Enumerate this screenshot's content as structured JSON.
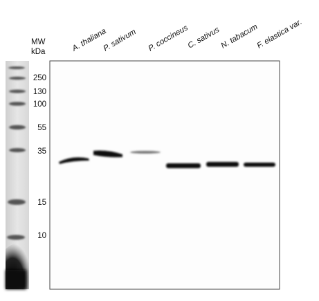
{
  "header": {
    "mw": "MW",
    "unit": "kDa"
  },
  "markers": [
    "250",
    "130",
    "100",
    "55",
    "35",
    "15",
    "10"
  ],
  "lanes": [
    "A. thaliana",
    "P. sativum",
    "P. coccineus",
    "C. sativus",
    "N. tabacum",
    "F. elastica var."
  ]
}
